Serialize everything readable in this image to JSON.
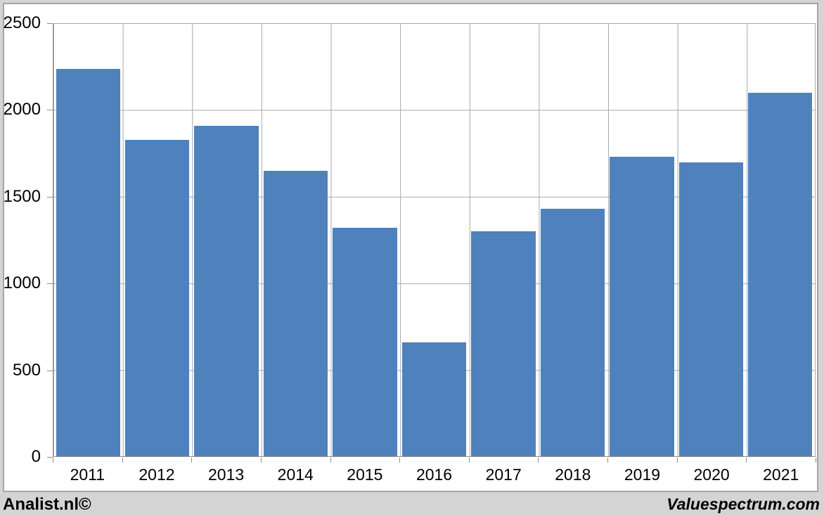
{
  "chart_data": {
    "type": "bar",
    "categories": [
      "2011",
      "2012",
      "2013",
      "2014",
      "2015",
      "2016",
      "2017",
      "2018",
      "2019",
      "2020",
      "2021"
    ],
    "values": [
      2240,
      1830,
      1910,
      1650,
      1320,
      660,
      1300,
      1430,
      1730,
      1700,
      2100
    ],
    "title": "",
    "xlabel": "",
    "ylabel": "",
    "ylim": [
      0,
      2500
    ],
    "y_ticks": [
      0,
      500,
      1000,
      1500,
      2000,
      2500
    ],
    "grid": true,
    "legend": "none",
    "bar_color": "#4F81BD"
  },
  "footer": {
    "left_text": "Analist.nl©",
    "right_text": "Valuespectrum.com"
  },
  "colors": {
    "background": "#d4d4d4",
    "plot_background": "#ffffff",
    "gridline": "#a9a9a9",
    "axis_line": "#8e8e8e",
    "bar": "#4F81BD",
    "text": "#000000"
  }
}
